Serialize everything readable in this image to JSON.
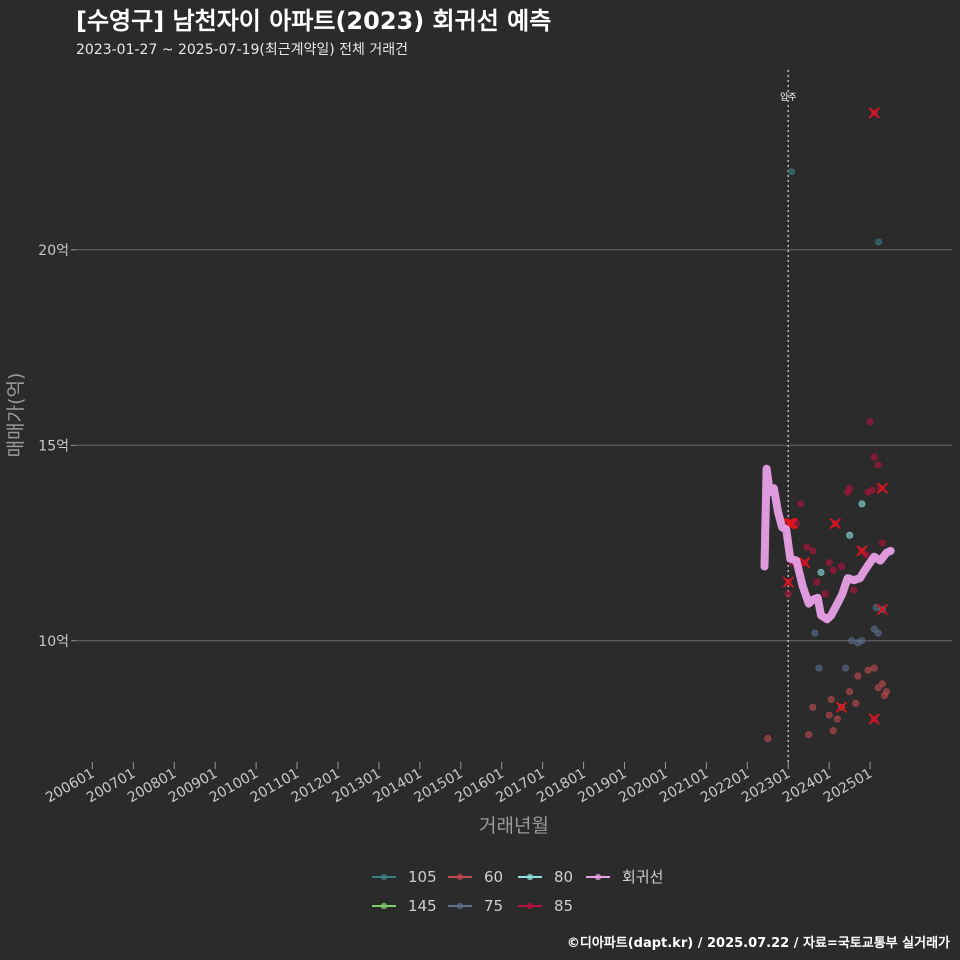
{
  "chart_data": {
    "type": "scatter",
    "title": "[수영구] 남천자이 아파트(2023) 회귀선 예측",
    "subtitle": "2023-01-27 ~ 2025-07-19(최근계약일) 전체 거래건",
    "xlabel": "거래년월",
    "ylabel": "매매가(억)",
    "caption": "©디아파트(dapt.kr) / 2025.07.22 / 자료=국토교통부 실거래가",
    "xlim": [
      2005.6,
      2027.0
    ],
    "ylim": [
      6.9,
      24.7
    ],
    "y_ticks": [
      {
        "value": 10,
        "label": "10억"
      },
      {
        "value": 15,
        "label": "15억"
      },
      {
        "value": 20,
        "label": "20억"
      }
    ],
    "x_ticks": [
      {
        "value": 2006,
        "label": "200601"
      },
      {
        "value": 2007,
        "label": "200701"
      },
      {
        "value": 2008,
        "label": "200801"
      },
      {
        "value": 2009,
        "label": "200901"
      },
      {
        "value": 2010,
        "label": "201001"
      },
      {
        "value": 2011,
        "label": "201101"
      },
      {
        "value": 2012,
        "label": "201201"
      },
      {
        "value": 2013,
        "label": "201301"
      },
      {
        "value": 2014,
        "label": "201401"
      },
      {
        "value": 2015,
        "label": "201501"
      },
      {
        "value": 2016,
        "label": "201601"
      },
      {
        "value": 2017,
        "label": "201701"
      },
      {
        "value": 2018,
        "label": "201801"
      },
      {
        "value": 2019,
        "label": "201901"
      },
      {
        "value": 2020,
        "label": "202001"
      },
      {
        "value": 2021,
        "label": "202101"
      },
      {
        "value": 2022,
        "label": "202201"
      },
      {
        "value": 2023,
        "label": "202301"
      },
      {
        "value": 2024,
        "label": "202401"
      },
      {
        "value": 2025,
        "label": "202501"
      }
    ],
    "grid": true,
    "legend_position": "bottom",
    "vline": {
      "x": 2023.0,
      "label": "입주"
    },
    "series": [
      {
        "name": "105",
        "color": "#3a7f86",
        "points": [
          [
            2023.08,
            22.0
          ],
          [
            2025.21,
            20.2
          ]
        ]
      },
      {
        "name": "145",
        "color": "#7bd06b",
        "points": []
      },
      {
        "name": "60",
        "color": "#c04a50",
        "points": [
          [
            2022.5,
            7.5
          ],
          [
            2023.5,
            7.6
          ],
          [
            2023.6,
            8.3
          ],
          [
            2024.0,
            8.1
          ],
          [
            2024.05,
            8.5
          ],
          [
            2024.1,
            7.7
          ],
          [
            2024.2,
            8.0
          ],
          [
            2024.3,
            8.3
          ],
          [
            2024.5,
            8.7
          ],
          [
            2024.65,
            8.4
          ],
          [
            2024.7,
            9.1
          ],
          [
            2024.95,
            9.25
          ],
          [
            2025.1,
            9.3
          ],
          [
            2025.2,
            8.8
          ],
          [
            2025.3,
            8.9
          ],
          [
            2025.35,
            8.6
          ],
          [
            2025.4,
            8.7
          ]
        ]
      },
      {
        "name": "75",
        "color": "#5c6f8c",
        "points": [
          [
            2023.65,
            10.2
          ],
          [
            2023.75,
            9.3
          ],
          [
            2024.4,
            9.3
          ],
          [
            2024.55,
            10.0
          ],
          [
            2024.7,
            9.95
          ],
          [
            2024.8,
            10.0
          ],
          [
            2025.1,
            10.3
          ],
          [
            2025.2,
            10.2
          ],
          [
            2025.15,
            10.85
          ],
          [
            2025.3,
            10.8
          ]
        ]
      },
      {
        "name": "80",
        "color": "#8fe0df",
        "points": [
          [
            2023.8,
            11.75
          ],
          [
            2024.5,
            12.7
          ],
          [
            2024.8,
            13.5
          ]
        ]
      },
      {
        "name": "85",
        "color": "#b3123e",
        "points": [
          [
            2023.0,
            11.5
          ],
          [
            2023.0,
            11.2
          ],
          [
            2023.05,
            13.0
          ],
          [
            2023.1,
            12.0
          ],
          [
            2023.2,
            13.0
          ],
          [
            2023.3,
            13.5
          ],
          [
            2023.4,
            12.0
          ],
          [
            2023.45,
            12.4
          ],
          [
            2023.6,
            12.3
          ],
          [
            2023.7,
            11.5
          ],
          [
            2023.9,
            11.2
          ],
          [
            2024.0,
            12.0
          ],
          [
            2024.1,
            11.8
          ],
          [
            2024.15,
            13.0
          ],
          [
            2024.3,
            11.9
          ],
          [
            2024.45,
            13.8
          ],
          [
            2024.5,
            13.9
          ],
          [
            2024.6,
            11.3
          ],
          [
            2024.8,
            12.3
          ],
          [
            2024.9,
            12.2
          ],
          [
            2024.95,
            13.8
          ],
          [
            2025.0,
            15.6
          ],
          [
            2025.05,
            13.85
          ],
          [
            2025.1,
            14.7
          ],
          [
            2025.2,
            14.5
          ],
          [
            2025.25,
            13.9
          ],
          [
            2025.3,
            12.5
          ],
          [
            2025.35,
            12.2
          ],
          [
            2025.1,
            23.5
          ],
          [
            2025.1,
            8.0
          ]
        ]
      }
    ],
    "highlighted": [
      [
        2025.1,
        23.5
      ],
      [
        2023.0,
        13.0
      ],
      [
        2023.05,
        13.0
      ],
      [
        2023.1,
        13.0
      ],
      [
        2023.0,
        11.5
      ],
      [
        2023.4,
        12.0
      ],
      [
        2024.15,
        13.0
      ],
      [
        2024.8,
        12.3
      ],
      [
        2025.3,
        13.9
      ],
      [
        2025.3,
        10.8
      ],
      [
        2024.3,
        8.3
      ],
      [
        2025.1,
        8.0
      ]
    ],
    "regression": {
      "name": "회귀선",
      "color": "#e8a0e6",
      "points": [
        [
          2022.42,
          11.9
        ],
        [
          2022.47,
          14.4
        ],
        [
          2022.55,
          13.8
        ],
        [
          2022.65,
          13.9
        ],
        [
          2022.75,
          13.3
        ],
        [
          2022.85,
          12.9
        ],
        [
          2022.95,
          12.85
        ],
        [
          2023.05,
          12.1
        ],
        [
          2023.2,
          12.05
        ],
        [
          2023.35,
          11.4
        ],
        [
          2023.5,
          10.95
        ],
        [
          2023.6,
          11.05
        ],
        [
          2023.72,
          11.1
        ],
        [
          2023.8,
          10.65
        ],
        [
          2023.95,
          10.55
        ],
        [
          2024.05,
          10.65
        ],
        [
          2024.2,
          10.95
        ],
        [
          2024.32,
          11.2
        ],
        [
          2024.45,
          11.6
        ],
        [
          2024.6,
          11.55
        ],
        [
          2024.75,
          11.6
        ],
        [
          2024.9,
          11.85
        ],
        [
          2025.1,
          12.15
        ],
        [
          2025.25,
          12.05
        ],
        [
          2025.4,
          12.25
        ],
        [
          2025.5,
          12.3
        ]
      ]
    }
  }
}
